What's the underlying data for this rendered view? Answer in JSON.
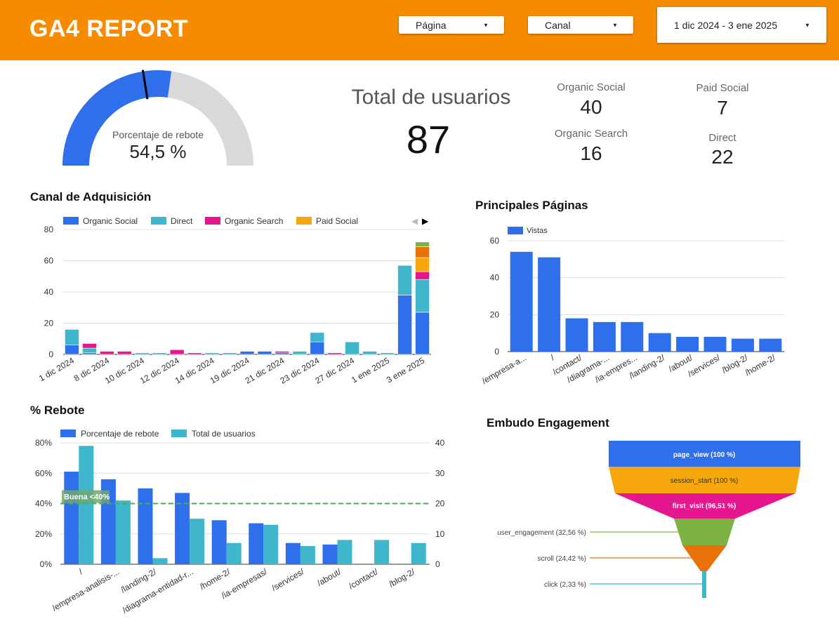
{
  "header": {
    "title": "GA4 REPORT",
    "filters": {
      "page": "Página",
      "channel": "Canal",
      "date_range": "1 dic 2024 - 3 ene 2025"
    },
    "bg": "#F78B00"
  },
  "gauge": {
    "label": "Porcentaje de rebote",
    "value_text": "54,5 %",
    "value": 54.5,
    "target": 45
  },
  "total_users": {
    "label": "Total de usuarios",
    "value": "87"
  },
  "channel_scores": [
    {
      "label": "Organic Social",
      "value": "40"
    },
    {
      "label": "Paid Social",
      "value": "7"
    },
    {
      "label": "Organic Search",
      "value": "16"
    },
    {
      "label": "Direct",
      "value": "22"
    }
  ],
  "colors": {
    "blue": "#2F6FEB",
    "teal": "#3FB6CC",
    "magenta": "#E5168E",
    "amber": "#F5A70C",
    "orange": "#E8710A",
    "green": "#7CB342"
  },
  "chart_data": [
    {
      "id": "acquisition",
      "type": "bar",
      "stacked": true,
      "title": "Canal de Adquisición",
      "ylim": [
        0,
        80
      ],
      "yticks": [
        0,
        20,
        40,
        60,
        80
      ],
      "tick_labels": [
        "1 dic 2024",
        "8 dic 2024",
        "10 dic 2024",
        "12 dic 2024",
        "14 dic 2024",
        "19 dic 2024",
        "21 dic 2024",
        "23 dic 2024",
        "27 dic 2024",
        "1 ene 2025",
        "3 ene 2025"
      ],
      "legend": [
        "Organic Social",
        "Direct",
        "Organic Search",
        "Paid Social"
      ],
      "bars": [
        {
          "segments": [
            6,
            10
          ]
        },
        {
          "segments": [
            1,
            3,
            3
          ]
        },
        {
          "segments": [
            0,
            0,
            2
          ]
        },
        {
          "segments": [
            0,
            0,
            2
          ]
        },
        {
          "segments": [
            0,
            1,
            0
          ]
        },
        {
          "segments": [
            0,
            1,
            0
          ]
        },
        {
          "segments": [
            0,
            0,
            3
          ]
        },
        {
          "segments": [
            0,
            0,
            1
          ]
        },
        {
          "segments": [
            0,
            1,
            0
          ]
        },
        {
          "segments": [
            0,
            1,
            0
          ]
        },
        {
          "segments": [
            2,
            0,
            0
          ]
        },
        {
          "segments": [
            2,
            0,
            0
          ]
        },
        {
          "segments": [
            1,
            0,
            1
          ]
        },
        {
          "segments": [
            0,
            2,
            0
          ]
        },
        {
          "segments": [
            8,
            6
          ]
        },
        {
          "segments": [
            0,
            0,
            1
          ]
        },
        {
          "segments": [
            0,
            8
          ]
        },
        {
          "segments": [
            0,
            2
          ]
        },
        {
          "segments": [
            0,
            1
          ]
        },
        {
          "segments": [
            38,
            19
          ]
        },
        {
          "segments": [
            27,
            21,
            5,
            9,
            7,
            3
          ]
        }
      ],
      "segment_colors": [
        "#2F6FEB",
        "#3FB6CC",
        "#E5168E",
        "#F5A70C",
        "#E8710A",
        "#7CB342"
      ]
    },
    {
      "id": "top_pages",
      "type": "bar",
      "title": "Principales Páginas",
      "legend": [
        "Vistas"
      ],
      "ylim": [
        0,
        60
      ],
      "yticks": [
        0,
        20,
        40,
        60
      ],
      "categories": [
        "/empresa-a...",
        "/",
        "/contact/",
        "/diagrama-...",
        "/ia-empres...",
        "/landing-2/",
        "/about/",
        "/services/",
        "/blog-2/",
        "/home-2/"
      ],
      "values": [
        54,
        51,
        18,
        16,
        16,
        10,
        8,
        8,
        7,
        7
      ]
    },
    {
      "id": "bounce",
      "type": "bar",
      "title": "% Rebote",
      "legend": [
        "Porcentaje de rebote",
        "Total de usuarios"
      ],
      "ylim_left": [
        0,
        80
      ],
      "yticks_left": [
        "0%",
        "20%",
        "40%",
        "60%",
        "80%"
      ],
      "ylim_right": [
        0,
        40
      ],
      "yticks_right": [
        "0",
        "10",
        "20",
        "30",
        "40"
      ],
      "reference_line": {
        "label": "Buena <40%",
        "value": 40
      },
      "categories": [
        "/",
        "/empresa-analisis-...",
        "/landing-2/",
        "/diagrama-entidad-r...",
        "/home-2/",
        "/ia-empresas/",
        "/services/",
        "/about/",
        "/contact/",
        "/blog-2/"
      ],
      "series": [
        {
          "name": "Porcentaje de rebote",
          "values": [
            61,
            56,
            50,
            47,
            29,
            27,
            14,
            13,
            0,
            0
          ]
        },
        {
          "name": "Total de usuarios",
          "values": [
            39,
            21,
            2,
            15,
            7,
            13,
            6,
            8,
            8,
            7
          ]
        }
      ]
    },
    {
      "id": "funnel",
      "type": "funnel",
      "title": "Embudo Engagement",
      "steps": [
        {
          "label": "page_view (100 %)",
          "value": 100,
          "color": "#2F6FEB"
        },
        {
          "label": "session_start (100 %)",
          "value": 100,
          "color": "#F5A70C"
        },
        {
          "label": "first_visit (96,51 %)",
          "value": 96.51,
          "color": "#E5168E"
        },
        {
          "label": "user_engagement (32,56 %)",
          "value": 32.56,
          "color": "#7CB342"
        },
        {
          "label": "scroll (24,42 %)",
          "value": 24.42,
          "color": "#E8710A"
        },
        {
          "label": "click (2,33 %)",
          "value": 2.33,
          "color": "#3FB6CC"
        }
      ]
    }
  ]
}
